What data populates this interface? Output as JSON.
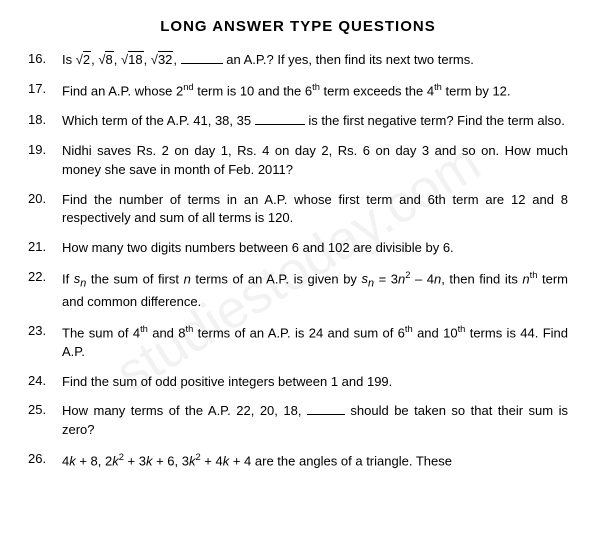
{
  "title_fontsize": 15,
  "body_fontsize": 13,
  "title": "LONG ANSWER TYPE QUESTIONS",
  "watermark": "studiestoday.com",
  "blank_short_width": 42,
  "blank_med_width": 50,
  "blank_long_width": 38,
  "questions": [
    {
      "num": "16.",
      "html": "Is <span class='sqrt'>√<span class='rad'>2</span></span>, <span class='sqrt'>√<span class='rad'>8</span></span>, <span class='sqrt'>√<span class='rad'>18</span></span>, <span class='sqrt'>√<span class='rad'>32</span></span>, <span class='blank' data-bind-attr='style:blank_short_style'></span> an A.P.? If yes, then find its next two terms."
    },
    {
      "num": "17.",
      "html": "Find an A.P. whose 2<sup>nd</sup> term is 10 and the 6<sup>th</sup> term exceeds the 4<sup>th</sup> term by 12."
    },
    {
      "num": "18.",
      "html": "Which term of the A.P. 41, 38, 35 <span class='blank' data-bind-attr='style:blank_med_style'></span> is the first negative term? Find the term also."
    },
    {
      "num": "19.",
      "html": "Nidhi saves Rs. 2 on day 1, Rs. 4 on day 2, Rs. 6 on day 3 and so on. How much money she save in month of Feb. 2011?"
    },
    {
      "num": "20.",
      "html": "Find the number of terms in an A.P. whose first term and 6th term are 12 and 8 respectively and sum of all terms is 120."
    },
    {
      "num": "21.",
      "html": "How many two digits numbers between 6 and 102 are divisible by 6."
    },
    {
      "num": "22.",
      "html": "If <i>s<sub>n</sub></i> the sum of first <i>n</i> terms of an A.P. is given by <i>s<sub>n</sub></i> = 3<i>n</i><sup>2</sup> – 4<i>n</i>, then find its <i>n</i><sup>th</sup> term and common difference."
    },
    {
      "num": "23.",
      "html": "The sum of 4<sup>th</sup> and 8<sup>th</sup> terms of an A.P. is 24 and sum of 6<sup>th</sup> and 10<sup>th</sup> terms is 44. Find A.P."
    },
    {
      "num": "24.",
      "html": "Find the sum of odd positive integers between 1 and 199."
    },
    {
      "num": "25.",
      "html": "How many terms of the A.P. 22, 20, 18, <span class='blank' data-bind-attr='style:blank_long_style'></span> should be taken so that their sum is zero?"
    },
    {
      "num": "26.",
      "html": "4<i>k</i> + 8, 2<i>k</i><sup>2</sup> + 3<i>k</i> + 6, 3<i>k</i><sup>2</sup> + 4<i>k</i> + 4 are the angles of a triangle. These"
    }
  ]
}
